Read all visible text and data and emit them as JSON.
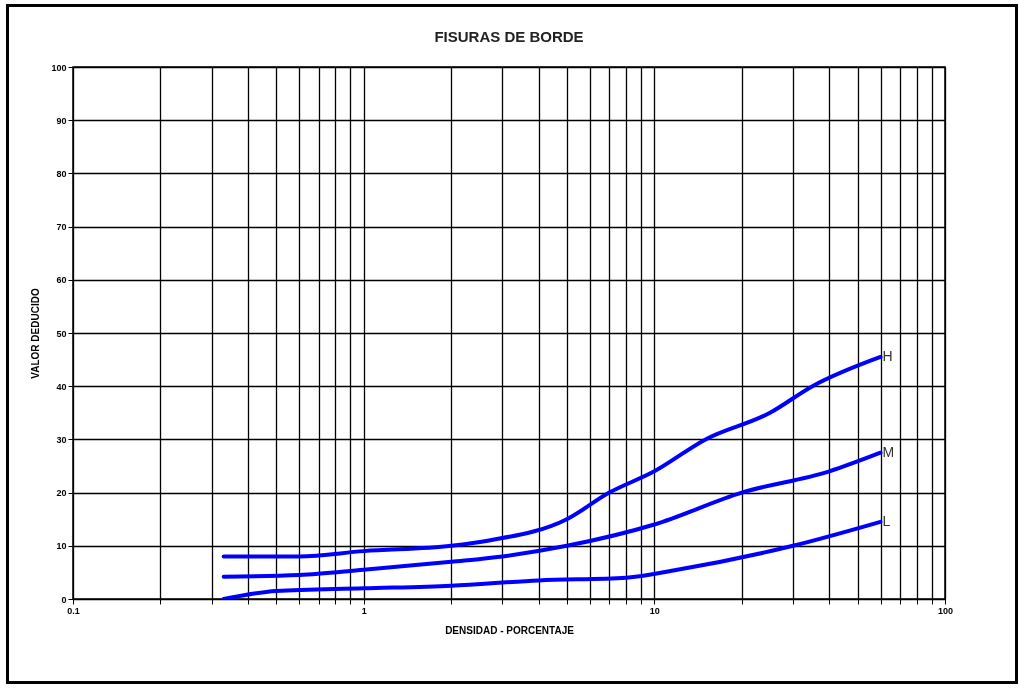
{
  "chart_data": {
    "type": "line",
    "title": "FISURAS DE BORDE",
    "xlabel": "DENSIDAD - PORCENTAJE",
    "ylabel": "VALOR DEDUCIDO",
    "log": "x",
    "grid": true,
    "line_style": "solid",
    "xlim": [
      0.1,
      100
    ],
    "ylim": [
      0,
      100
    ],
    "xticks": [
      0.1,
      {
        "value": 0.2,
        "label": null
      },
      {
        "value": 0.3,
        "label": null
      },
      {
        "value": 0.4,
        "label": null
      },
      {
        "value": 0.5,
        "label": null
      },
      {
        "value": 0.6,
        "label": null
      },
      {
        "value": 0.7,
        "label": null
      },
      {
        "value": 0.8,
        "label": null
      },
      {
        "value": 0.9,
        "label": null
      },
      1,
      {
        "value": 2,
        "label": null
      },
      {
        "value": 3,
        "label": null
      },
      {
        "value": 4,
        "label": null
      },
      {
        "value": 5,
        "label": null
      },
      {
        "value": 6,
        "label": null
      },
      {
        "value": 7,
        "label": null
      },
      {
        "value": 8,
        "label": null
      },
      {
        "value": 9,
        "label": null
      },
      10,
      {
        "value": 20,
        "label": null
      },
      {
        "value": 30,
        "label": null
      },
      {
        "value": 40,
        "label": null
      },
      {
        "value": 50,
        "label": null
      },
      {
        "value": 60,
        "label": null
      },
      {
        "value": 70,
        "label": null
      },
      {
        "value": 80,
        "label": null
      },
      {
        "value": 90,
        "label": null
      },
      100
    ],
    "yticks": [
      0,
      10,
      20,
      30,
      40,
      50,
      60,
      70,
      80,
      90,
      100
    ],
    "series": [
      {
        "name": "H",
        "color": "#0000ff",
        "x": [
          0.33,
          0.6,
          1,
          2,
          2.7,
          5,
          7,
          10,
          15,
          25,
          35,
          60
        ],
        "values": [
          8,
          8,
          9,
          10,
          11,
          15,
          20,
          24,
          30,
          35,
          40,
          45.5
        ]
      },
      {
        "name": "M",
        "color": "#0000ff",
        "x": [
          0.33,
          0.6,
          1,
          2,
          3,
          5,
          10,
          20,
          40,
          60
        ],
        "values": [
          4.2,
          4.5,
          5.5,
          7,
          8,
          10,
          14,
          20,
          24,
          27.5
        ]
      },
      {
        "name": "L",
        "color": "#0000ff",
        "x": [
          0.33,
          0.5,
          1,
          2,
          4,
          8,
          12,
          30,
          60
        ],
        "values": [
          0,
          1.5,
          2,
          2.5,
          3.5,
          4,
          5.5,
          10,
          14.5
        ]
      }
    ]
  }
}
